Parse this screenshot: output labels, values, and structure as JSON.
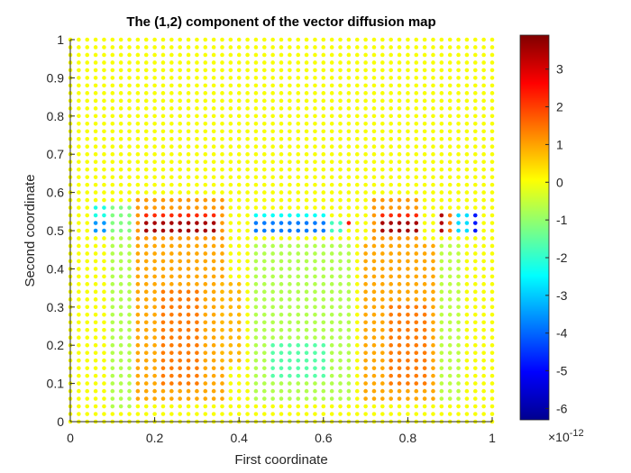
{
  "chart_data": {
    "type": "scatter",
    "title": "The (1,2) component of the vector diffusion map",
    "xlabel": "First coordinate",
    "ylabel": "Second coordinate",
    "xlim": [
      0,
      1
    ],
    "ylim": [
      0,
      1
    ],
    "xticks": [
      "0",
      "0.2",
      "0.4",
      "0.6",
      "0.8",
      "1"
    ],
    "yticks": [
      "0",
      "0.1",
      "0.2",
      "0.3",
      "0.4",
      "0.5",
      "0.6",
      "0.7",
      "0.8",
      "0.9",
      "1"
    ],
    "grid": false,
    "grid_spacing": 0.02,
    "colormap": "jet",
    "colorbar": {
      "range": [
        -6.3e-12,
        3.9e-12
      ],
      "ticks": [
        "3",
        "2",
        "1",
        "0",
        "-1",
        "-2",
        "-3",
        "-4",
        "-5",
        "-6"
      ],
      "exponent_label": "×10",
      "exponent_power": "-12"
    },
    "background_value": 0,
    "regions": [
      {
        "x": [
          0.1,
          0.14
        ],
        "y": [
          0.04,
          0.48
        ],
        "value": -0.7
      },
      {
        "x": [
          0.16,
          0.36
        ],
        "y": [
          0.06,
          0.46
        ],
        "value": 0.95
      },
      {
        "x": [
          0.22,
          0.3
        ],
        "y": [
          0.1,
          0.34
        ],
        "value": 1.4
      },
      {
        "x": [
          0.36,
          0.4
        ],
        "y": [
          0.16,
          0.36
        ],
        "value": 0.8
      },
      {
        "x": [
          0.44,
          0.66
        ],
        "y": [
          0.06,
          0.46
        ],
        "value": -0.7
      },
      {
        "x": [
          0.48,
          0.6
        ],
        "y": [
          0.12,
          0.2
        ],
        "value": -1.6
      },
      {
        "x": [
          0.7,
          0.86
        ],
        "y": [
          0.06,
          0.46
        ],
        "value": 0.95
      },
      {
        "x": [
          0.76,
          0.84
        ],
        "y": [
          0.1,
          0.3
        ],
        "value": 1.4
      },
      {
        "x": [
          0.88,
          0.92
        ],
        "y": [
          0.06,
          0.46
        ],
        "value": -0.6
      },
      {
        "x": [
          0.06,
          0.1
        ],
        "y": [
          0.5,
          0.52
        ],
        "value": -3.5
      },
      {
        "x": [
          0.06,
          0.08
        ],
        "y": [
          0.54,
          0.56
        ],
        "value": -2.2
      },
      {
        "x": [
          0.1,
          0.14
        ],
        "y": [
          0.5,
          0.56
        ],
        "value": -1.2
      },
      {
        "x": [
          0.16,
          0.36
        ],
        "y": [
          0.48,
          0.58
        ],
        "value": 1.1
      },
      {
        "x": [
          0.18,
          0.34
        ],
        "y": [
          0.5,
          0.52
        ],
        "value": 3.5
      },
      {
        "x": [
          0.18,
          0.34
        ],
        "y": [
          0.54,
          0.54
        ],
        "value": 2.2
      },
      {
        "x": [
          0.44,
          0.6
        ],
        "y": [
          0.5,
          0.52
        ],
        "value": -3.8
      },
      {
        "x": [
          0.44,
          0.6
        ],
        "y": [
          0.54,
          0.54
        ],
        "value": -2.4
      },
      {
        "x": [
          0.62,
          0.64
        ],
        "y": [
          0.5,
          0.52
        ],
        "value": -1.8
      },
      {
        "x": [
          0.66,
          0.66
        ],
        "y": [
          0.52,
          0.52
        ],
        "value": 2.4
      },
      {
        "x": [
          0.72,
          0.82
        ],
        "y": [
          0.48,
          0.58
        ],
        "value": 1.1
      },
      {
        "x": [
          0.74,
          0.82
        ],
        "y": [
          0.5,
          0.52
        ],
        "value": 3.5
      },
      {
        "x": [
          0.74,
          0.82
        ],
        "y": [
          0.54,
          0.54
        ],
        "value": 2.2
      },
      {
        "x": [
          0.88,
          0.88
        ],
        "y": [
          0.5,
          0.54
        ],
        "value": 3.4
      },
      {
        "x": [
          0.9,
          0.9
        ],
        "y": [
          0.5,
          0.54
        ],
        "value": 1.4
      },
      {
        "x": [
          0.92,
          0.94
        ],
        "y": [
          0.5,
          0.54
        ],
        "value": -2.8
      },
      {
        "x": [
          0.96,
          0.96
        ],
        "y": [
          0.5,
          0.54
        ],
        "value": -4.8
      }
    ]
  }
}
